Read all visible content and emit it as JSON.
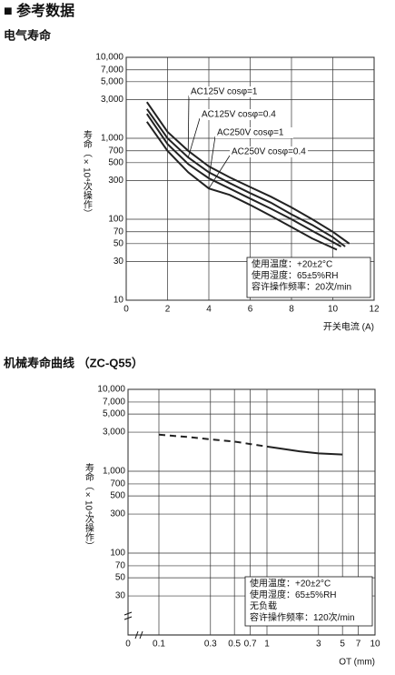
{
  "header": {
    "title": "■ 参考数据"
  },
  "chart_data": [
    {
      "type": "line",
      "title": "电气寿命",
      "y_label": "寿命（×10⁴次操作）",
      "x_label": "开关电流 (A)",
      "yscale": "log",
      "ylim": [
        10,
        10000
      ],
      "yticks": [
        10,
        30,
        50,
        70,
        100,
        300,
        500,
        700,
        {
          "value": 1000,
          "label": "1,000"
        },
        {
          "value": 3000,
          "label": "3,000"
        },
        {
          "value": 5000,
          "label": "5,000"
        },
        {
          "value": 7000,
          "label": "7,000"
        },
        {
          "value": 10000,
          "label": "10,000"
        }
      ],
      "xlim": [
        0,
        12
      ],
      "xticks": [
        0,
        2,
        4,
        6,
        8,
        10,
        12
      ],
      "grid": true,
      "series": [
        {
          "name": "AC125V cosφ=1",
          "color": "#222222",
          "x": [
            1,
            2,
            3,
            4,
            5,
            6,
            7,
            8,
            9,
            10,
            10.8
          ],
          "values": [
            2800,
            1200,
            700,
            450,
            330,
            250,
            190,
            140,
            100,
            70,
            50
          ]
        },
        {
          "name": "AC125V cosφ=0.4",
          "color": "#222222",
          "x": [
            1,
            2,
            3,
            4,
            5,
            6,
            7,
            8,
            9,
            10,
            10.6
          ],
          "values": [
            2300,
            1000,
            580,
            380,
            280,
            210,
            160,
            115,
            85,
            60,
            46
          ]
        },
        {
          "name": "AC250V cosφ=1",
          "color": "#222222",
          "x": [
            1,
            2,
            3,
            4,
            5,
            6,
            7,
            8,
            9,
            10.4
          ],
          "values": [
            2000,
            850,
            480,
            320,
            240,
            180,
            135,
            100,
            72,
            46
          ]
        },
        {
          "name": "AC250V cosφ=0.4",
          "color": "#222222",
          "x": [
            1,
            2,
            3,
            4,
            5,
            6,
            7,
            8,
            9,
            10.2
          ],
          "values": [
            1600,
            700,
            380,
            240,
            200,
            150,
            110,
            80,
            58,
            42
          ]
        }
      ],
      "notes": [
        "使用温度：+20±2°C",
        "使用湿度：65±5%RH",
        "容许操作频率：20次/min"
      ]
    },
    {
      "type": "line",
      "title": "机械寿命曲线 （ZC-Q55）",
      "y_label": "寿命（×10⁴次操作）",
      "x_label": "OT (mm)",
      "yscale": "log",
      "xscale": "log",
      "ylim": [
        10,
        10000
      ],
      "yticks": [
        30,
        50,
        70,
        100,
        300,
        500,
        700,
        {
          "value": 1000,
          "label": "1,000"
        },
        {
          "value": 3000,
          "label": "3,000"
        },
        {
          "value": 5000,
          "label": "5,000"
        },
        {
          "value": 7000,
          "label": "7,000"
        },
        {
          "value": 10000,
          "label": "10,000"
        }
      ],
      "xlim": [
        0,
        10
      ],
      "xticks": [
        0,
        0.1,
        0.3,
        0.5,
        0.7,
        1,
        3,
        5,
        7,
        10
      ],
      "grid": true,
      "series": [
        {
          "color": "#222222",
          "dash": true,
          "x": [
            0.1,
            0.2,
            0.3,
            0.5,
            0.7,
            1
          ],
          "values": [
            2800,
            2600,
            2450,
            2300,
            2150,
            2000
          ]
        },
        {
          "color": "#222222",
          "x": [
            1,
            2,
            3,
            5
          ],
          "values": [
            2000,
            1750,
            1650,
            1600
          ]
        }
      ],
      "notes": [
        "使用温度：+20±2°C",
        "使用湿度：65±5%RH",
        "无负载",
        "容许操作频率：120次/min"
      ]
    }
  ]
}
